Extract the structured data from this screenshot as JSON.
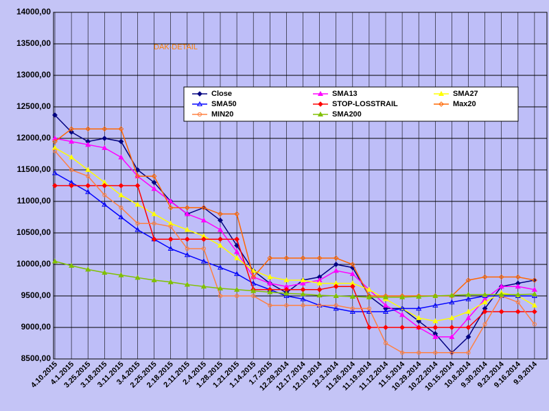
{
  "chart_data": {
    "type": "line",
    "title": "DAK-DETAIL",
    "categories": [
      "4.10.2015",
      "4.1.2015",
      "3.25.2015",
      "3.18.2015",
      "3.11.2015",
      "3.4.2015",
      "2.25.2015",
      "2.18.2015",
      "2.11.2015",
      "2.4.2015",
      "1.28.2015",
      "1.21.2015",
      "1.14.2015",
      "1.7.2015",
      "12.29.2014",
      "12.17.2014",
      "12.10.2014",
      "12.3.2014",
      "11.26.2014",
      "11.19.2014",
      "11.12.2014",
      "11.5.2014",
      "10.29.2014",
      "10.22.2014",
      "10.15.2014",
      "10.8.2014",
      "9.30.2014",
      "9.23.2014",
      "9.16.2014",
      "9.9.2014"
    ],
    "ylim": [
      8500,
      14000
    ],
    "yticks": [
      {
        "value": 8500,
        "label": "8500,00"
      },
      {
        "value": 9000,
        "label": "9000,00"
      },
      {
        "value": 9500,
        "label": "9500,00"
      },
      {
        "value": 10000,
        "label": "10000,00"
      },
      {
        "value": 10500,
        "label": "10500,00"
      },
      {
        "value": 11000,
        "label": "11000,00"
      },
      {
        "value": 11500,
        "label": "11500,00"
      },
      {
        "value": 12000,
        "label": "12000,00"
      },
      {
        "value": 12500,
        "label": "12500,00"
      },
      {
        "value": 13000,
        "label": "13000,00"
      },
      {
        "value": 13500,
        "label": "13500,00"
      },
      {
        "value": 14000,
        "label": "14000,00"
      }
    ],
    "grid": true,
    "series": [
      {
        "name": "Close",
        "color": "#000080",
        "marker": "diamond",
        "values": [
          12370,
          12100,
          11950,
          12000,
          11950,
          11500,
          11300,
          11000,
          10800,
          10900,
          10700,
          10300,
          9900,
          9700,
          9550,
          9750,
          9800,
          10000,
          9950,
          9500,
          9300,
          9300,
          9100,
          8900,
          8600,
          8850,
          9300,
          9650,
          9700,
          9750
        ]
      },
      {
        "name": "SMA13",
        "color": "#ff00ff",
        "marker": "triangle",
        "values": [
          12000,
          11950,
          11900,
          11850,
          11700,
          11400,
          11200,
          11000,
          10800,
          10700,
          10550,
          10200,
          9800,
          9700,
          9650,
          9700,
          9750,
          9900,
          9850,
          9600,
          9350,
          9200,
          9000,
          8850,
          8850,
          9150,
          9450,
          9650,
          9650,
          9600
        ]
      },
      {
        "name": "SMA27",
        "color": "#ffff00",
        "marker": "triangle",
        "values": [
          11850,
          11700,
          11500,
          11300,
          11100,
          10950,
          10800,
          10650,
          10550,
          10450,
          10300,
          10100,
          9900,
          9800,
          9750,
          9750,
          9700,
          9700,
          9700,
          9600,
          9450,
          9300,
          9150,
          9100,
          9150,
          9250,
          9400,
          9550,
          9500,
          9350
        ]
      },
      {
        "name": "SMA50",
        "color": "#0000ff",
        "marker": "triangle-open",
        "values": [
          11450,
          11300,
          11150,
          10950,
          10750,
          10550,
          10400,
          10250,
          10150,
          10050,
          9950,
          9850,
          9700,
          9600,
          9500,
          9450,
          9350,
          9300,
          9250,
          9250,
          9250,
          9300,
          9300,
          9350,
          9400,
          9450,
          9500,
          9500,
          9500,
          9500
        ]
      },
      {
        "name": "STOP-LOSSTRAIL",
        "color": "#ff0000",
        "marker": "diamond",
        "values": [
          11250,
          11250,
          11250,
          11250,
          11250,
          11250,
          10400,
          10400,
          10400,
          10400,
          10400,
          10400,
          9600,
          9600,
          9600,
          9600,
          9600,
          9650,
          9650,
          9000,
          9000,
          9000,
          9000,
          9000,
          9000,
          9000,
          9250,
          9250,
          9250,
          9250
        ]
      },
      {
        "name": "Max20",
        "color": "#ff6600",
        "marker": "diamond-open",
        "values": [
          11950,
          12150,
          12150,
          12150,
          12150,
          11400,
          11400,
          10900,
          10900,
          10900,
          10800,
          10800,
          9800,
          10100,
          10100,
          10100,
          10100,
          10100,
          10000,
          9500,
          9500,
          9500,
          9500,
          9500,
          9500,
          9750,
          9800,
          9800,
          9800,
          9750
        ]
      },
      {
        "name": "MIN20",
        "color": "#ff8040",
        "marker": "circle-open",
        "values": [
          11800,
          11500,
          11400,
          11100,
          10900,
          10650,
          10650,
          10600,
          10250,
          10250,
          9500,
          9500,
          9500,
          9350,
          9350,
          9350,
          9350,
          9350,
          9300,
          9300,
          8750,
          8600,
          8600,
          8600,
          8600,
          8600,
          9050,
          9500,
          9400,
          9050
        ]
      },
      {
        "name": "SMA200",
        "color": "#80c000",
        "marker": "triangle",
        "values": [
          10050,
          9980,
          9920,
          9870,
          9830,
          9790,
          9750,
          9720,
          9680,
          9650,
          9620,
          9600,
          9580,
          9560,
          9540,
          9530,
          9510,
          9500,
          9490,
          9480,
          9480,
          9480,
          9490,
          9500,
          9510,
          9520,
          9520,
          9520,
          9520,
          9530
        ]
      }
    ]
  }
}
